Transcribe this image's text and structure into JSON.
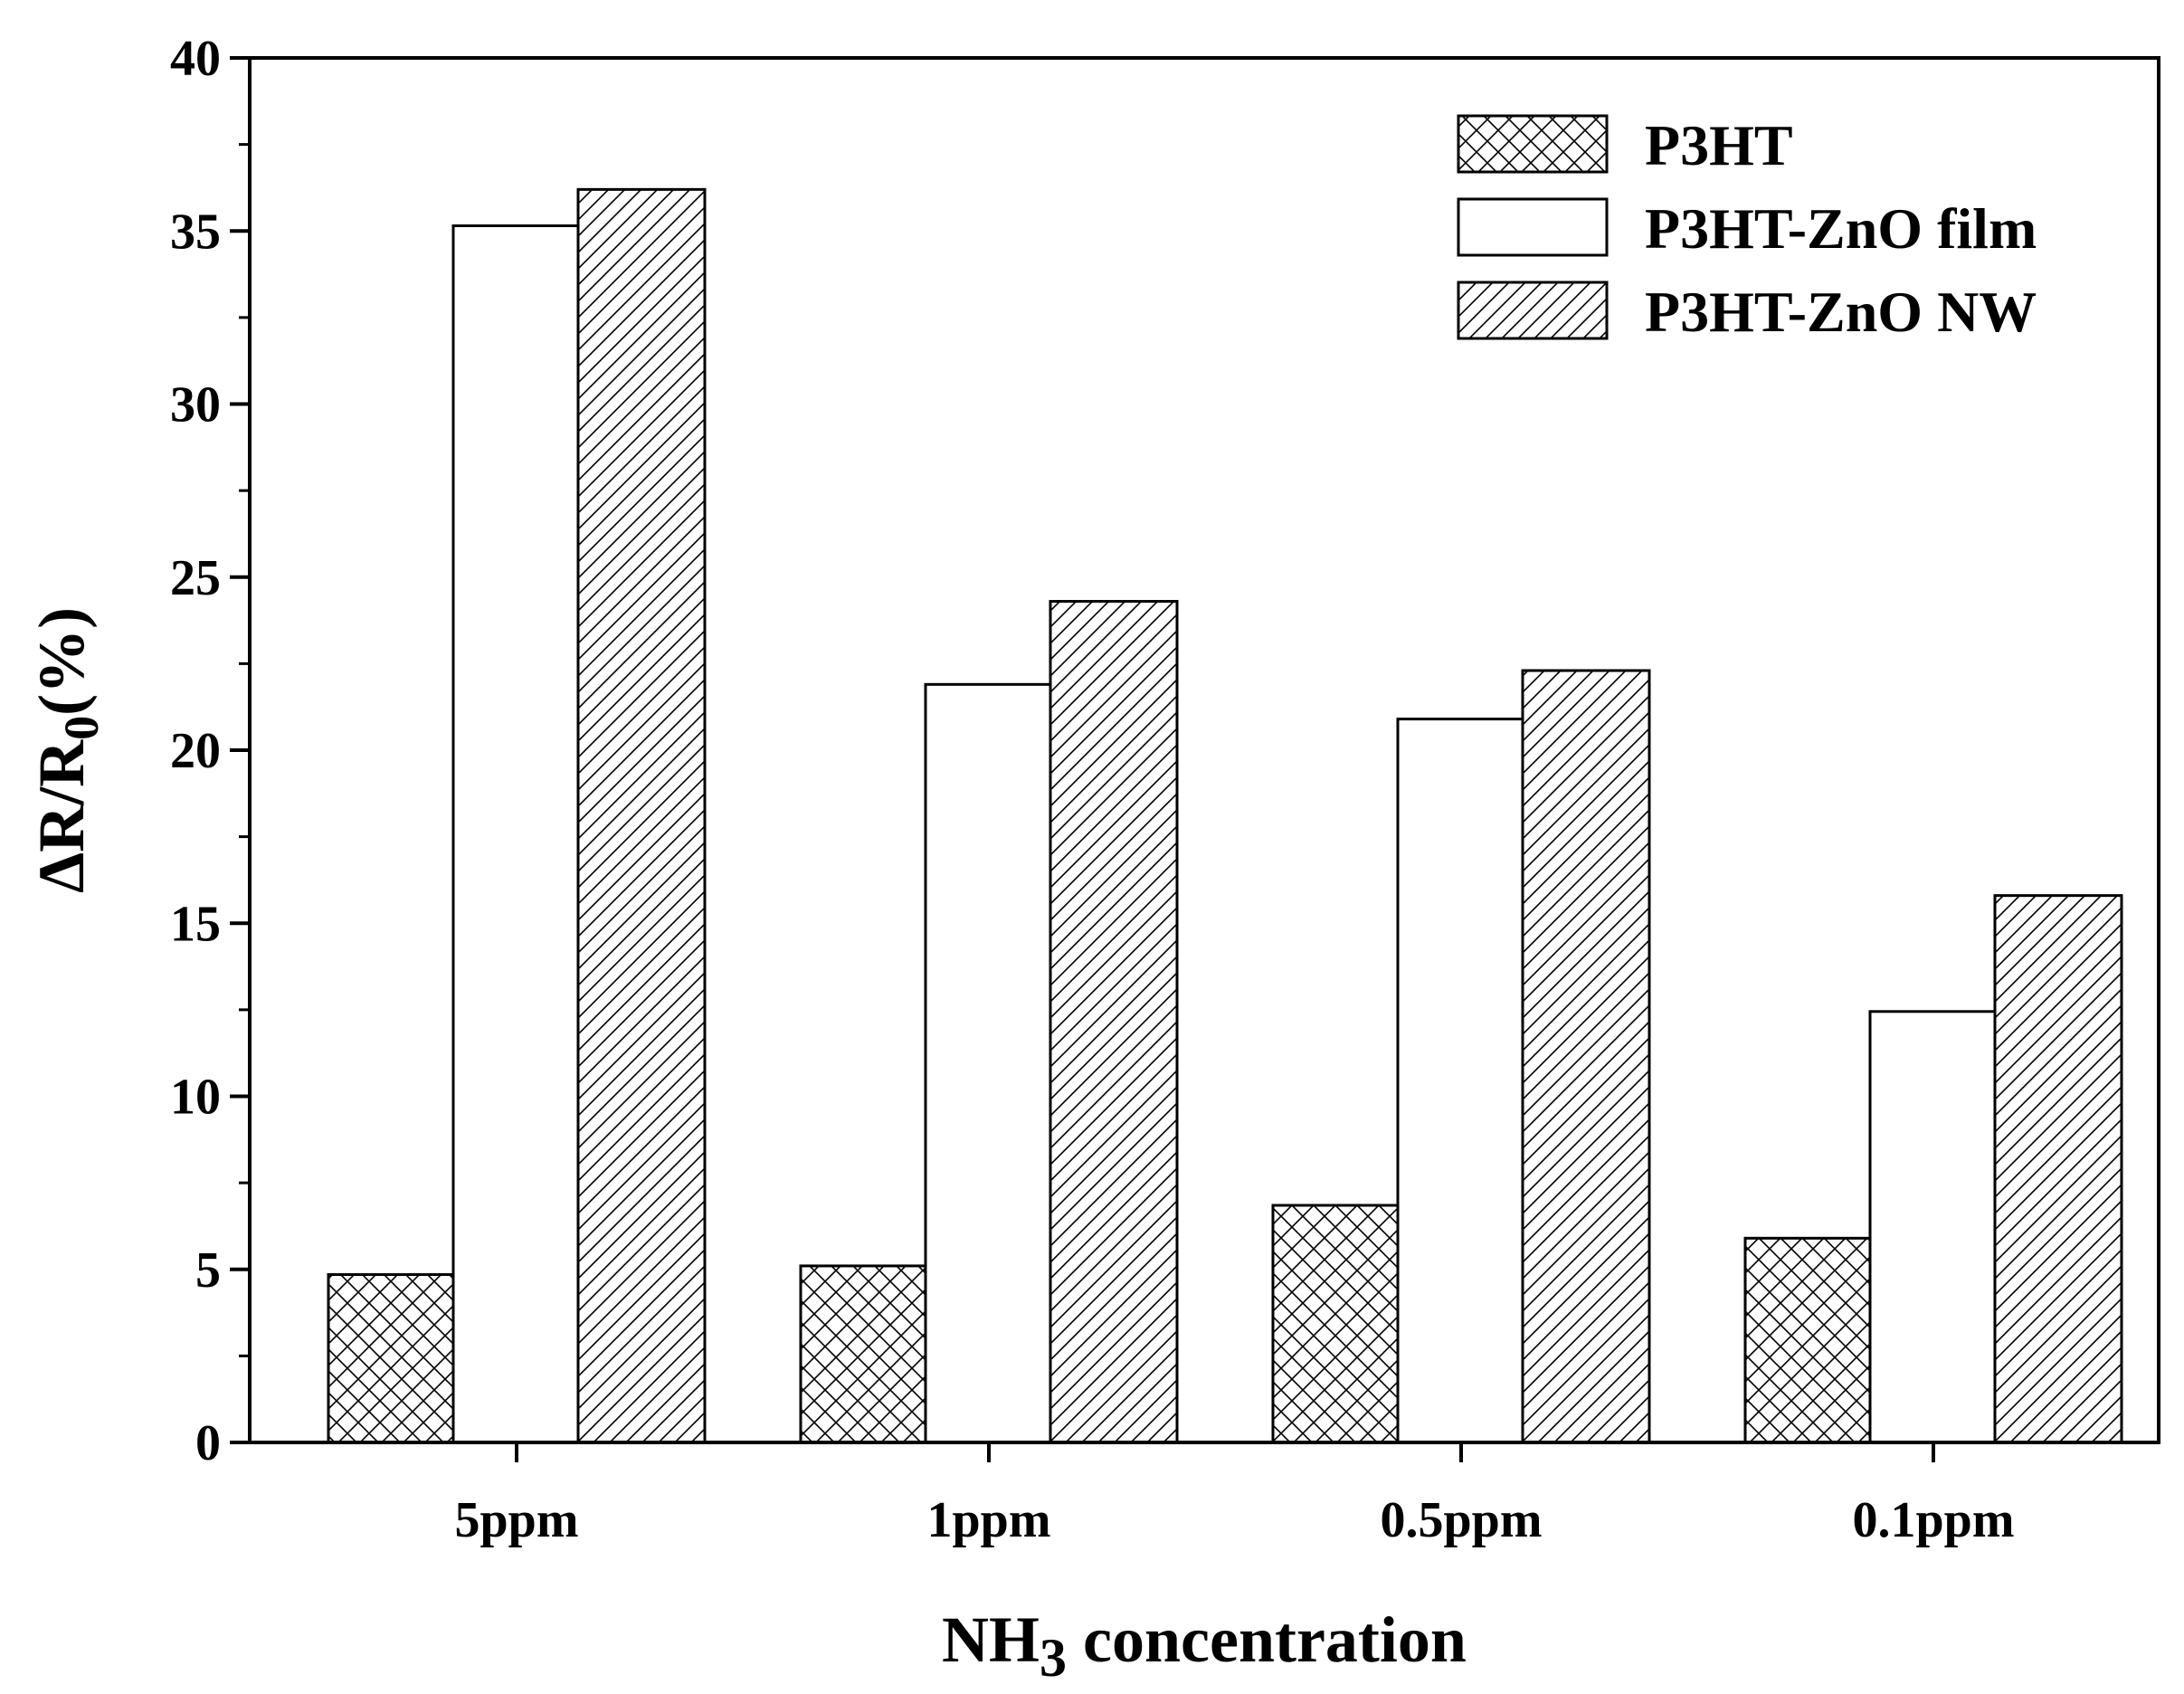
{
  "chart_data": {
    "type": "bar",
    "categories": [
      "5ppm",
      "1ppm",
      "0.5ppm",
      "0.1ppm"
    ],
    "series": [
      {
        "name": "P3HT",
        "values": [
          4.85,
          5.1,
          6.85,
          5.9
        ],
        "pattern": "crosshatch"
      },
      {
        "name": "P3HT-ZnO film",
        "values": [
          35.15,
          21.9,
          20.9,
          12.45
        ],
        "pattern": "none"
      },
      {
        "name": "P3HT-ZnO NW",
        "values": [
          36.2,
          24.3,
          22.3,
          15.8
        ],
        "pattern": "diagonal"
      }
    ],
    "ylim": [
      0,
      40
    ],
    "yticks": [
      "0",
      "5",
      "10",
      "15",
      "20",
      "25",
      "30",
      "35",
      "40"
    ],
    "xlabel": {
      "main": "NH",
      "sub": "3",
      "rest": " concentration"
    },
    "ylabel": {
      "main": "ΔR/R",
      "sub": "0",
      "rest": "(%)"
    },
    "legend_position": "top-right",
    "grid": false
  },
  "colors": {
    "fill": "#ffffff",
    "stroke": "#000000"
  }
}
